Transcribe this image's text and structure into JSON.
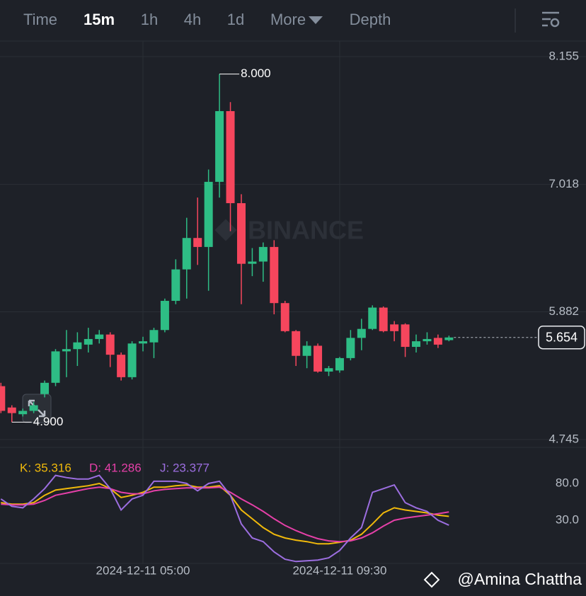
{
  "tabs": [
    "Time",
    "15m",
    "1h",
    "4h",
    "1d",
    "More",
    "Depth"
  ],
  "active_tab": 1,
  "watermark": "BINANCE",
  "credit": "@Amina Chattha",
  "chart_data": [
    {
      "type": "candlestick",
      "x": [
        null,
        null,
        null,
        null,
        null,
        null,
        null,
        null,
        null,
        null,
        null,
        null,
        null,
        "2024-12-11 05:00",
        null,
        null,
        null,
        null,
        null,
        null,
        null,
        null,
        null,
        null,
        null,
        null,
        null,
        null,
        null,
        null,
        null,
        "2024-12-11 09:30",
        null,
        null,
        null,
        null,
        null,
        null,
        null,
        null,
        null,
        null
      ],
      "open": [
        5.22,
        5.03,
        4.97,
        5.0,
        5.15,
        5.25,
        5.53,
        5.55,
        5.59,
        5.64,
        5.68,
        5.5,
        5.3,
        5.6,
        5.61,
        5.72,
        5.98,
        6.26,
        6.54,
        6.46,
        7.04,
        7.67,
        6.85,
        6.31,
        6.33,
        6.46,
        5.96,
        5.71,
        5.49,
        5.58,
        5.35,
        5.36,
        5.47,
        5.65,
        5.73,
        5.92,
        5.77,
        5.77,
        5.57,
        5.62,
        5.65,
        5.63
      ],
      "high": [
        5.25,
        5.05,
        5.02,
        5.08,
        5.27,
        5.55,
        5.72,
        5.7,
        5.74,
        5.72,
        5.7,
        5.52,
        5.62,
        5.66,
        5.74,
        6.0,
        6.35,
        6.72,
        6.9,
        7.15,
        8.0,
        7.75,
        6.93,
        6.45,
        6.5,
        6.52,
        5.98,
        5.72,
        5.62,
        5.6,
        5.4,
        5.48,
        5.72,
        5.82,
        5.94,
        5.93,
        5.8,
        5.78,
        5.68,
        5.7,
        5.68,
        5.67
      ],
      "low": [
        4.98,
        4.9,
        4.95,
        4.98,
        5.12,
        5.22,
        5.3,
        5.4,
        5.52,
        5.6,
        5.39,
        5.27,
        5.28,
        5.53,
        5.47,
        5.7,
        5.95,
        6.0,
        6.3,
        6.07,
        6.9,
        6.6,
        5.95,
        6.2,
        6.15,
        5.86,
        5.7,
        5.4,
        5.38,
        5.34,
        5.31,
        5.34,
        5.45,
        5.54,
        5.72,
        5.7,
        5.62,
        5.48,
        5.52,
        5.59,
        5.56,
        5.62
      ],
      "close": [
        5.0,
        4.98,
        5.0,
        5.05,
        5.25,
        5.53,
        5.55,
        5.61,
        5.64,
        5.68,
        5.5,
        5.3,
        5.6,
        5.62,
        5.72,
        5.98,
        6.26,
        6.54,
        6.46,
        7.04,
        7.67,
        6.85,
        6.31,
        6.33,
        6.46,
        5.96,
        5.71,
        5.49,
        5.58,
        5.35,
        5.38,
        5.47,
        5.65,
        5.73,
        5.92,
        5.71,
        5.71,
        5.57,
        5.62,
        5.64,
        5.59,
        5.654
      ],
      "up_color": "#2ebd85",
      "down_color": "#f6465d",
      "ylim": [
        4.675,
        8.294
      ],
      "yticks": [
        8.155,
        7.018,
        5.882,
        4.745
      ],
      "grid": true,
      "annotations": [
        {
          "value": 8.0,
          "label": "8.000",
          "of": "high"
        },
        {
          "value": 4.9,
          "label": "4.900",
          "of": "low"
        }
      ],
      "last_price": 5.654
    },
    {
      "type": "line",
      "ylim": [
        -32,
        116
      ],
      "yticks": [
        {
          "value": 80,
          "label": "80.0"
        },
        {
          "value": 30,
          "label": "30.0"
        }
      ],
      "series": [
        {
          "name": "K",
          "legend": "K: 35.316",
          "color": "#f0b90b",
          "values": [
            54,
            52,
            52,
            54,
            64,
            71,
            73,
            75,
            77,
            80,
            73,
            61,
            64,
            68,
            75,
            75,
            77,
            78,
            75,
            75,
            77,
            64,
            44,
            32,
            20,
            11,
            6,
            3,
            1,
            -2,
            -2,
            0,
            3,
            11,
            25,
            40,
            47,
            44,
            42,
            40,
            37,
            35.316
          ]
        },
        {
          "name": "D",
          "legend": "D: 41.286",
          "color": "#e540a8",
          "values": [
            52,
            51,
            51,
            52,
            57,
            64,
            67,
            70,
            73,
            75,
            73,
            68,
            66,
            66,
            70,
            72,
            73,
            74,
            74,
            74,
            75,
            68,
            59,
            51,
            42,
            32,
            23,
            16,
            10,
            5,
            2,
            1,
            2,
            6,
            13,
            22,
            30,
            33,
            35,
            37,
            39,
            41.286
          ]
        },
        {
          "name": "J",
          "legend": "J: 23.377",
          "color": "#9c6ee0",
          "values": [
            59,
            49,
            47,
            59,
            73,
            91,
            88,
            86,
            86,
            91,
            73,
            44,
            59,
            64,
            83,
            83,
            83,
            80,
            70,
            80,
            83,
            64,
            25,
            6,
            1,
            -13,
            -23,
            -26,
            -25,
            -24,
            -21,
            -11,
            6,
            20,
            68,
            73,
            78,
            54,
            47,
            42,
            30,
            23.377
          ]
        }
      ]
    }
  ]
}
